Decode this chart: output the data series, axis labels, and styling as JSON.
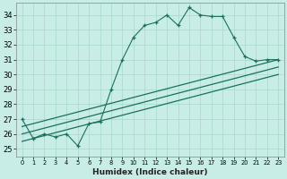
{
  "background_color": "#c8ece6",
  "grid_color": "#a8d8cc",
  "line_color": "#1a7060",
  "xlabel": "Humidex (Indice chaleur)",
  "xlim": [
    -0.5,
    23.5
  ],
  "ylim": [
    24.5,
    34.8
  ],
  "line1_x": [
    0,
    1,
    2,
    3,
    4,
    5,
    6,
    7,
    8,
    9,
    10,
    11,
    12,
    13,
    14,
    15,
    16,
    17,
    18,
    19,
    20,
    21,
    22,
    23
  ],
  "line1_y": [
    27.0,
    25.7,
    26.0,
    25.8,
    26.0,
    25.2,
    26.7,
    26.8,
    29.0,
    31.0,
    32.5,
    33.3,
    33.5,
    34.0,
    33.3,
    34.5,
    34.0,
    33.9,
    33.9,
    32.5,
    31.2,
    30.9,
    31.0,
    31.0
  ],
  "line2_x": [
    0,
    23
  ],
  "line2_y": [
    26.5,
    31.0
  ],
  "line3_x": [
    0,
    23
  ],
  "line3_y": [
    26.0,
    30.5
  ],
  "line4_x": [
    0,
    23
  ],
  "line4_y": [
    25.5,
    30.0
  ],
  "yticks": [
    25,
    26,
    27,
    28,
    29,
    30,
    31,
    32,
    33,
    34
  ]
}
